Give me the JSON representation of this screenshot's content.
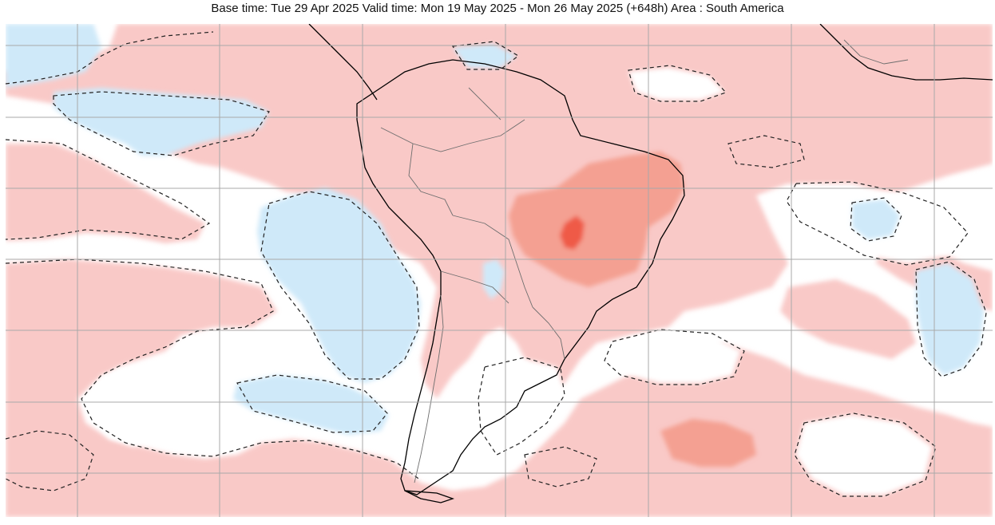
{
  "title": "Base time: Tue 29 Apr 2025 Valid time: Mon 19 May 2025 - Mon 26 May 2025 (+648h) Area : South America",
  "map": {
    "area": "South America",
    "colors": {
      "ocean_base": "#ffffff",
      "warm_light": "#f9c9c7",
      "warm_medium": "#f49a8b",
      "warm_strong": "#f04e3e",
      "cool_light": "#cfe9f9",
      "cool_medium": "#9fd3f4",
      "gridline": "#a9a9a9",
      "coastline": "#000000",
      "borders": "#6e6e6e",
      "contour": "#222222"
    }
  }
}
